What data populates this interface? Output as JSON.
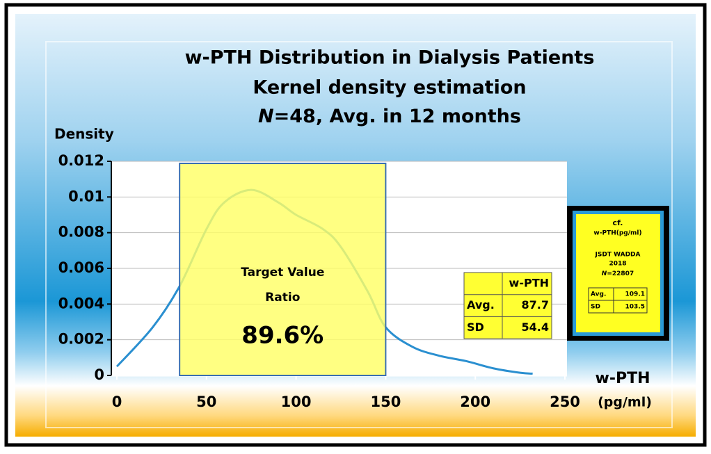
{
  "chart_data": {
    "type": "line",
    "title_lines": [
      "w-PTH Distribution in Dialysis Patients",
      "Kernel density estimation"
    ],
    "subtitle": {
      "italic": "N",
      "text": "=48, Avg. in 12 months"
    },
    "y_label": "Density",
    "x_label": "w-PTH",
    "x_unit": "(pg/ml)",
    "x": [
      0,
      20,
      35,
      50,
      60,
      75,
      90,
      100,
      115,
      125,
      140,
      150,
      165,
      180,
      195,
      210,
      225,
      232
    ],
    "series": [
      {
        "color": "#2a8fd0",
        "values": [
          0.0005,
          0.0027,
          0.005,
          0.0082,
          0.0097,
          0.0104,
          0.0097,
          0.009,
          0.0082,
          0.0072,
          0.0047,
          0.0027,
          0.0016,
          0.0011,
          0.0008,
          0.0004,
          0.00015,
          0.0001
        ]
      }
    ],
    "xlim": [
      0,
      250
    ],
    "xticks": [
      0,
      50,
      100,
      150,
      200,
      250
    ],
    "ylim": [
      0,
      0.012
    ],
    "yticks": [
      0,
      0.002,
      0.004,
      0.006,
      0.008,
      0.01,
      0.012
    ],
    "grid": true,
    "target_range": [
      35,
      150
    ],
    "target_color": "#ffff66",
    "annotation": {
      "lines": [
        "Target Value",
        "Ratio"
      ],
      "value": 89.6,
      "label": "89.6%"
    },
    "stats_table": {
      "header": "w-PTH",
      "rows": [
        [
          "Avg.",
          87.7
        ],
        [
          "SD",
          54.4
        ]
      ]
    },
    "reference_box": {
      "lines": [
        "cf.",
        "w-PTH(pg/ml)",
        "JSDT WADDA",
        "2018"
      ],
      "n": {
        "italic": "N",
        "text": "=22807"
      },
      "rows": [
        [
          "Avg.",
          109.1
        ],
        [
          "SD",
          103.5
        ]
      ]
    }
  }
}
